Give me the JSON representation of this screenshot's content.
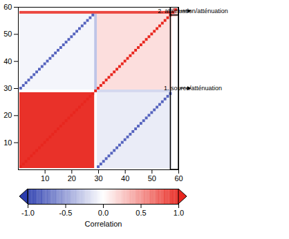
{
  "chart_data": {
    "type": "heatmap",
    "xlim": [
      0,
      60
    ],
    "ylim": [
      0,
      60
    ],
    "xticks": [
      10,
      20,
      30,
      40,
      50,
      60
    ],
    "yticks": [
      10,
      20,
      30,
      40,
      50,
      60
    ],
    "regions": [
      {
        "x": [
          1,
          28
        ],
        "y": [
          1,
          28
        ],
        "value": 0.95
      },
      {
        "x": [
          30,
          57
        ],
        "y": [
          30,
          57
        ],
        "value": 0.15
      },
      {
        "x": [
          30,
          57
        ],
        "y": [
          1,
          28
        ],
        "value": -0.1
      },
      {
        "x": [
          1,
          28
        ],
        "y": [
          30,
          57
        ],
        "value": -0.05
      },
      {
        "x": [
          29,
          29
        ],
        "y": [
          30,
          57
        ],
        "value": -0.3
      },
      {
        "x": [
          30,
          57
        ],
        "y": [
          29,
          29
        ],
        "value": -0.2
      },
      {
        "x": [
          1,
          57
        ],
        "y": [
          58,
          58
        ],
        "value": 0.85
      },
      {
        "x": [
          58,
          59
        ],
        "y": [
          57,
          59
        ],
        "value": 0.3
      }
    ],
    "diagonals": [
      {
        "x": 1,
        "y": 1,
        "length": 59,
        "value": 1
      },
      {
        "x": 1,
        "y": 30,
        "length": 28,
        "value": -0.8
      },
      {
        "x": 30,
        "y": 1,
        "length": 28,
        "value": -0.8
      }
    ],
    "annotations": [
      {
        "text": "2. atténuation/atténuation",
        "x": [
          57,
          60
        ],
        "y": [
          57,
          60
        ]
      },
      {
        "text": "1. source/atténuation",
        "x": [
          57,
          60
        ],
        "y": [
          0,
          60
        ]
      }
    ],
    "colorbar": {
      "label": "Correlation",
      "lim": [
        -1,
        1
      ],
      "ticks": [
        {
          "value": -1,
          "label": "-1.0"
        },
        {
          "value": -0.5,
          "label": "-0.5"
        },
        {
          "value": 0,
          "label": "0.0"
        },
        {
          "value": 0.5,
          "label": "0.5"
        },
        {
          "value": 1,
          "label": "1.0"
        }
      ]
    }
  }
}
